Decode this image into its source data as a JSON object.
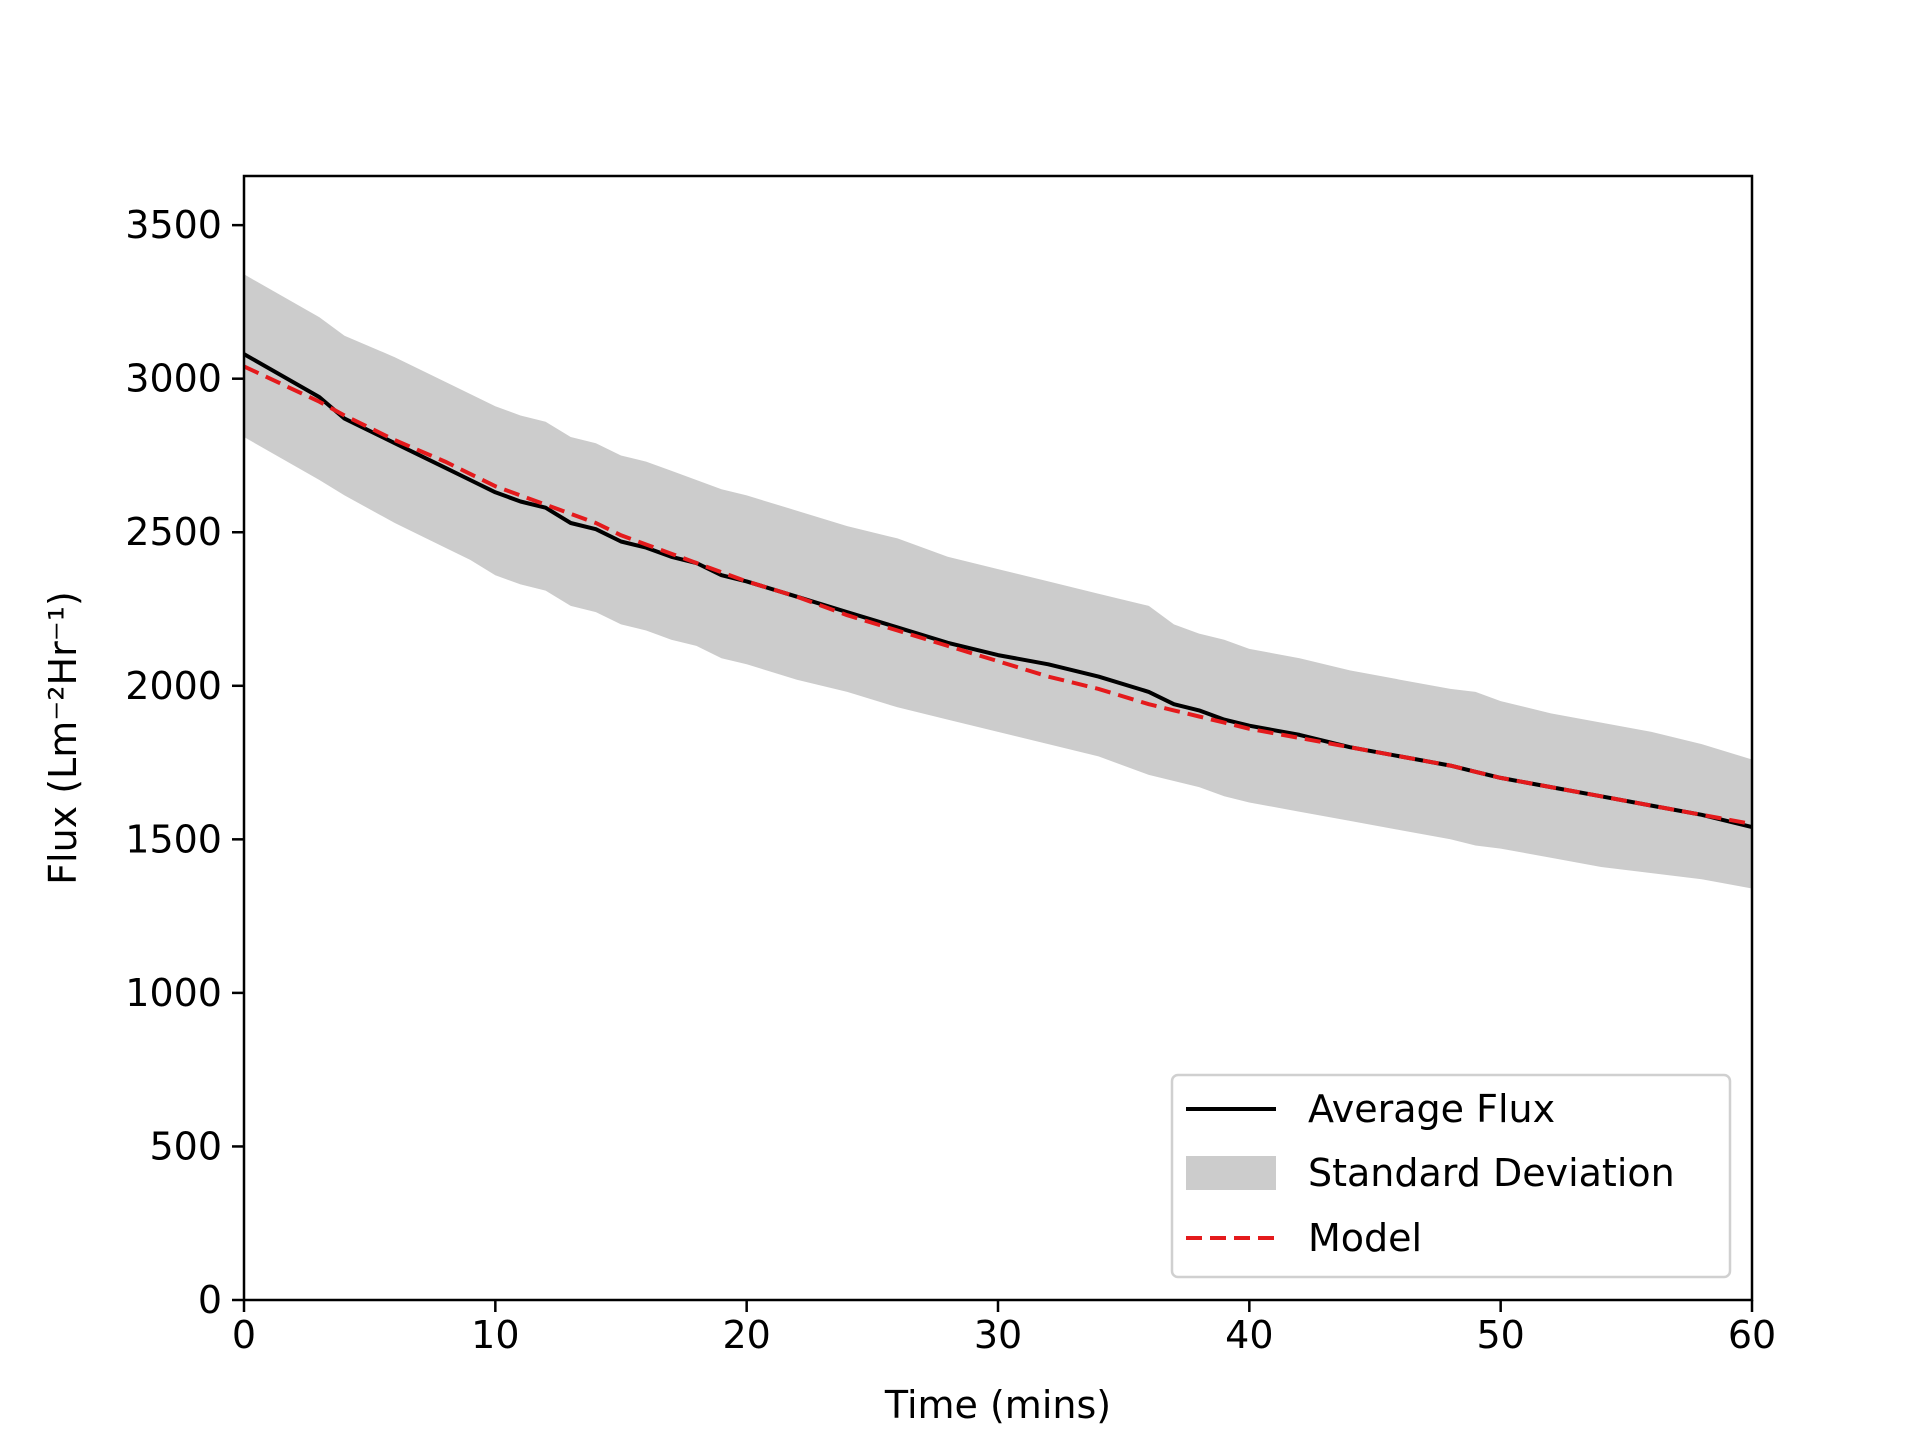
{
  "chart_data": {
    "type": "line",
    "title": "",
    "xlabel": "Time (mins)",
    "ylabel": "Flux (Lm⁻²Hr⁻¹)",
    "xlim": [
      0,
      60
    ],
    "ylim": [
      0,
      3660
    ],
    "x_ticks": [
      0,
      10,
      20,
      30,
      40,
      50,
      60
    ],
    "x_tick_labels": [
      "0",
      "10",
      "20",
      "30",
      "40",
      "50",
      "60"
    ],
    "y_ticks": [
      0,
      500,
      1000,
      1500,
      2000,
      2500,
      3000,
      3500
    ],
    "y_tick_labels": [
      "0",
      "500",
      "1000",
      "1500",
      "2000",
      "2500",
      "3000",
      "3500"
    ],
    "grid": false,
    "legend_position": "bottom-right",
    "x": [
      0,
      3,
      4,
      6,
      8,
      9,
      10,
      11,
      12,
      13,
      14,
      15,
      16,
      17,
      18,
      19,
      20,
      22,
      24,
      26,
      28,
      30,
      32,
      34,
      36,
      37,
      38,
      39,
      40,
      42,
      44,
      46,
      48,
      49,
      50,
      52,
      54,
      56,
      58,
      60
    ],
    "series": [
      {
        "name": "Average Flux",
        "kind": "line",
        "color": "#000000",
        "values": [
          3080,
          2940,
          2870,
          2790,
          2710,
          2670,
          2630,
          2600,
          2580,
          2530,
          2510,
          2470,
          2450,
          2420,
          2400,
          2360,
          2340,
          2290,
          2240,
          2190,
          2140,
          2100,
          2070,
          2030,
          1980,
          1940,
          1920,
          1890,
          1870,
          1840,
          1800,
          1770,
          1740,
          1720,
          1700,
          1670,
          1640,
          1610,
          1580,
          1540
        ]
      },
      {
        "name": "Standard Deviation",
        "kind": "band",
        "color": "#cccccc",
        "lower": [
          2810,
          2670,
          2620,
          2530,
          2450,
          2410,
          2360,
          2330,
          2310,
          2260,
          2240,
          2200,
          2180,
          2150,
          2130,
          2090,
          2070,
          2020,
          1980,
          1930,
          1890,
          1850,
          1810,
          1770,
          1710,
          1690,
          1670,
          1640,
          1620,
          1590,
          1560,
          1530,
          1500,
          1480,
          1470,
          1440,
          1410,
          1390,
          1370,
          1340
        ],
        "upper": [
          3340,
          3200,
          3140,
          3070,
          2990,
          2950,
          2910,
          2880,
          2860,
          2810,
          2790,
          2750,
          2730,
          2700,
          2670,
          2640,
          2620,
          2570,
          2520,
          2480,
          2420,
          2380,
          2340,
          2300,
          2260,
          2200,
          2170,
          2150,
          2120,
          2090,
          2050,
          2020,
          1990,
          1980,
          1950,
          1910,
          1880,
          1850,
          1810,
          1760
        ]
      },
      {
        "name": "Model",
        "kind": "dashed-line",
        "color": "#e41a1c",
        "values": [
          3040,
          2925,
          2880,
          2800,
          2730,
          2690,
          2650,
          2620,
          2590,
          2560,
          2530,
          2490,
          2460,
          2430,
          2400,
          2370,
          2340,
          2290,
          2230,
          2180,
          2130,
          2080,
          2030,
          1990,
          1940,
          1920,
          1900,
          1880,
          1860,
          1830,
          1800,
          1770,
          1740,
          1720,
          1700,
          1670,
          1640,
          1610,
          1580,
          1550
        ]
      }
    ]
  }
}
